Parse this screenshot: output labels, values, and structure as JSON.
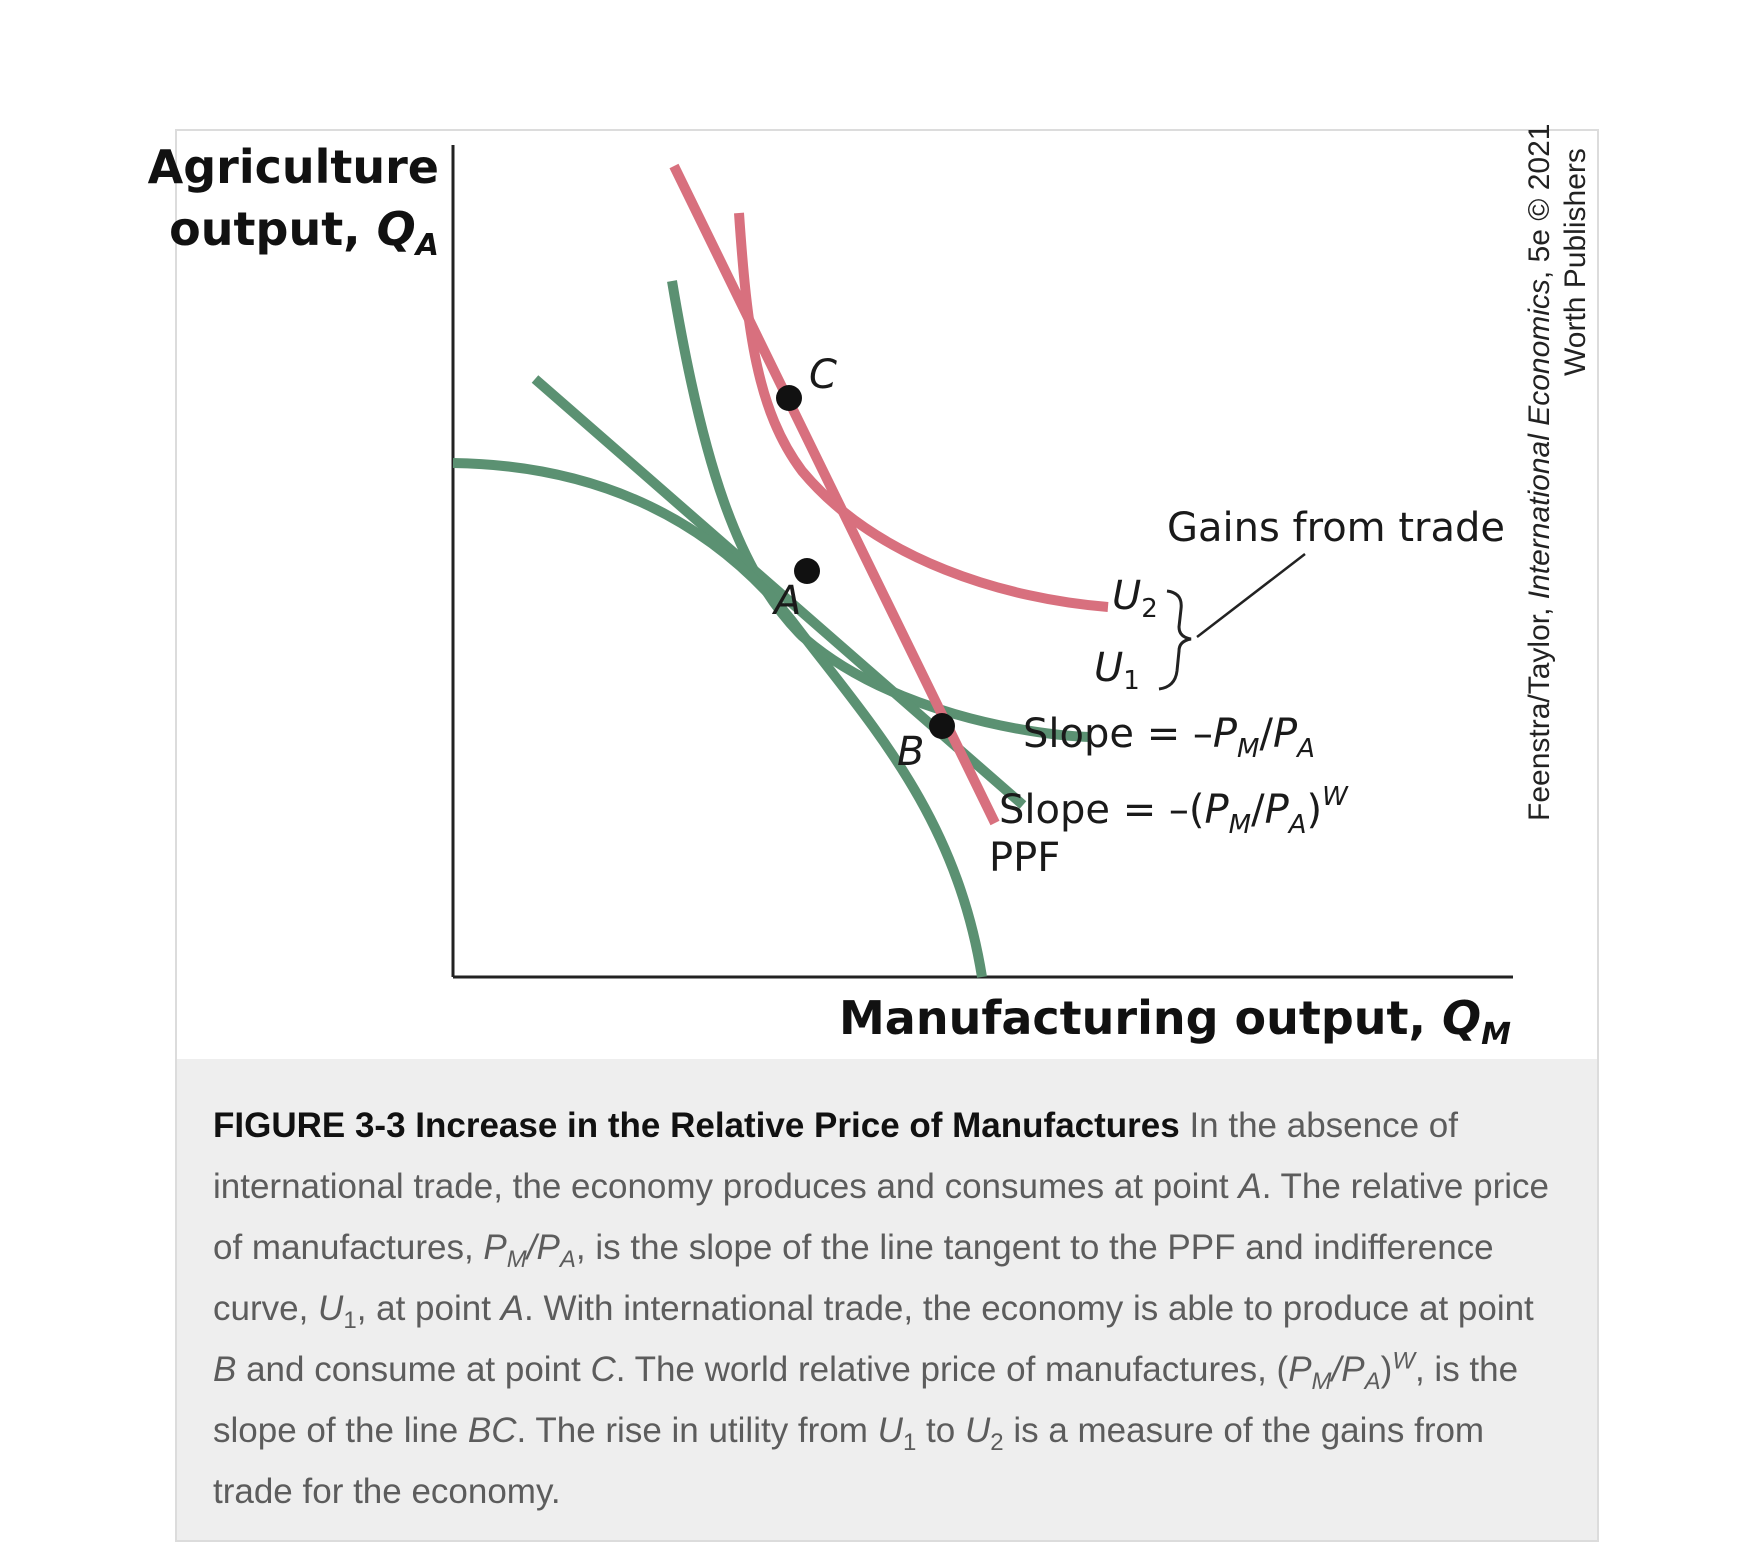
{
  "diagram": {
    "y_axis_title_line1": "Agriculture",
    "y_axis_title_line2": "output, ",
    "y_axis_symbol": "Q",
    "y_axis_subscript": "A",
    "x_axis_title": "Manufacturing output, ",
    "x_axis_symbol": "Q",
    "x_axis_subscript": "M",
    "point_a": "A",
    "point_b": "B",
    "point_c": "C",
    "curve_u1": "U",
    "curve_u1_sub": "1",
    "curve_u2": "U",
    "curve_u2_sub": "2",
    "gains_label": "Gains from trade",
    "slope1_prefix": "Slope = –",
    "slope1_pm": "P",
    "slope1_pm_sub": "M",
    "slope1_mid": "/",
    "slope1_pa": "P",
    "slope1_pa_sub": "A",
    "slope2_prefix": "Slope = –(",
    "slope2_pm": "P",
    "slope2_pm_sub": "M",
    "slope2_mid": "/",
    "slope2_pa": "P",
    "slope2_pa_sub": "A",
    "slope2_close": ")",
    "slope2_sup": "W",
    "ppf_label": "PPF",
    "credit_line1_a": "Feenstra/Taylor, ",
    "credit_line1_b": "International Economics",
    "credit_line1_c": ", 5e © 2021",
    "credit_line2": "Worth Publishers",
    "colors": {
      "green": "#5b9172",
      "red": "#d8707e",
      "axis": "#222222"
    }
  },
  "caption": {
    "figure_label": "FIGURE 3-3 Increase in the Relative Price of Manufactures",
    "t1": " In the absence of international trade, the economy produces and consumes at point ",
    "t1_a": "A",
    "t2": ". The relative price of manufactures, ",
    "t2_pm": "P",
    "t2_pm_sub": "M",
    "t2_slash": "/",
    "t2_pa": "P",
    "t2_pa_sub": "A",
    "t3": ", is the slope of the line tangent to the PPF and indifference curve, ",
    "t3_u": "U",
    "t3_u_sub": "1",
    "t4": ", at point ",
    "t4_a": "A",
    "t5": ". With international trade, the economy is able to produce at point ",
    "t5_b": "B",
    "t6": " and consume at point ",
    "t6_c": "C",
    "t7": ". The world relative price of manufactures, (",
    "t7_pm": "P",
    "t7_pm_sub": "M",
    "t7_slash": "/",
    "t7_pa": "P",
    "t7_pa_sub": "A",
    "t7_close": ")",
    "t7_sup": "W",
    "t8": ", is the slope of the line ",
    "t8_bc": "BC",
    "t9": ". The rise in utility from ",
    "t9_u1": "U",
    "t9_u1_sub": "1",
    "t10": " to ",
    "t10_u2": "U",
    "t10_u2_sub": "2",
    "t11": " is a measure of the gains from trade for the economy."
  }
}
